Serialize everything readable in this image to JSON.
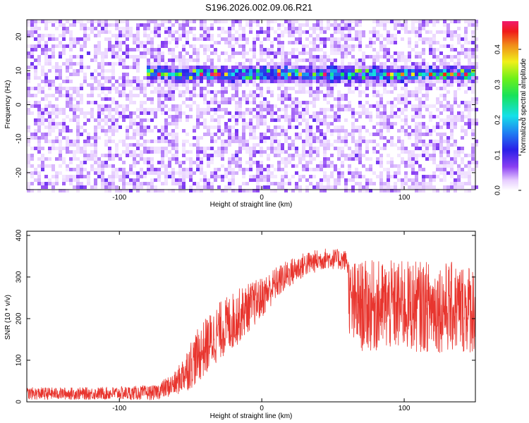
{
  "title": "S196.2026.002.09.06.R21",
  "chart_data": [
    {
      "type": "heatmap",
      "xlabel": "Height of straight line (km)",
      "ylabel": "Frequency (Hz)",
      "xlim": [
        -165,
        150
      ],
      "ylim": [
        -25,
        25
      ],
      "x_ticks": [
        -100,
        0,
        100
      ],
      "y_ticks": [
        -20,
        -10,
        0,
        10,
        20
      ],
      "colorbar": {
        "label": "Normalized spectral amplitude",
        "range": [
          0,
          0.48
        ],
        "ticks": [
          0.0,
          0.1,
          0.2,
          0.3,
          0.4
        ],
        "colormap": "rainbow (white-violet-blue-cyan-green-yellow-red-magenta)"
      },
      "features": [
        {
          "x_range": [
            -80,
            150
          ],
          "frequency_hz": 9,
          "description": "narrow band of elevated amplitude (~0.15-0.45)"
        }
      ],
      "background_amplitude": [
        0,
        0.08
      ]
    },
    {
      "type": "line",
      "xlabel": "Height of straight line (km)",
      "ylabel": "SNR (10 * v/v)",
      "xlim": [
        -165,
        150
      ],
      "ylim": [
        0,
        410
      ],
      "x_ticks": [
        -100,
        0,
        100
      ],
      "y_ticks": [
        0,
        100,
        200,
        300,
        400
      ],
      "line_color": "#e8352e",
      "series": [
        {
          "envelope_points": [
            {
              "x": -165,
              "mean": 20,
              "spread": 15
            },
            {
              "x": -120,
              "mean": 20,
              "spread": 15
            },
            {
              "x": -75,
              "mean": 22,
              "spread": 18
            },
            {
              "x": -60,
              "mean": 45,
              "spread": 30
            },
            {
              "x": -50,
              "mean": 90,
              "spread": 60
            },
            {
              "x": -40,
              "mean": 130,
              "spread": 70
            },
            {
              "x": -30,
              "mean": 170,
              "spread": 70
            },
            {
              "x": -20,
              "mean": 195,
              "spread": 70
            },
            {
              "x": -10,
              "mean": 225,
              "spread": 60
            },
            {
              "x": 0,
              "mean": 250,
              "spread": 50
            },
            {
              "x": 10,
              "mean": 285,
              "spread": 40
            },
            {
              "x": 20,
              "mean": 310,
              "spread": 35
            },
            {
              "x": 30,
              "mean": 330,
              "spread": 30
            },
            {
              "x": 45,
              "mean": 345,
              "spread": 25
            },
            {
              "x": 60,
              "mean": 340,
              "spread": 25
            },
            {
              "x": 62,
              "mean": 230,
              "spread": 110
            },
            {
              "x": 100,
              "mean": 230,
              "spread": 110
            },
            {
              "x": 150,
              "mean": 225,
              "spread": 110
            }
          ]
        }
      ]
    }
  ]
}
